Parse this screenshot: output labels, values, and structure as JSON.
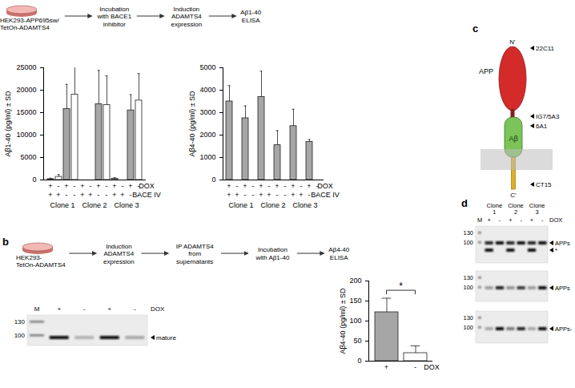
{
  "chart_data": [
    {
      "type": "bar",
      "y_label": "Aβ1-40 (pg/ml) ± SD",
      "categories": [
        null,
        null,
        null,
        null,
        null,
        null,
        null,
        null,
        null,
        null,
        null,
        null
      ],
      "groups": [
        "Clone 1",
        "Clone 2",
        "Clone 3"
      ],
      "rows": [
        {
          "name": "DOX",
          "labels": [
            "+",
            "-",
            "+",
            "-",
            "+",
            "-",
            "+",
            "-",
            "+",
            "-",
            "+",
            "-"
          ]
        },
        {
          "name": "BACE IV",
          "labels": [
            "+",
            "+",
            "-",
            "-",
            "+",
            "+",
            "-",
            "-",
            "+",
            "+",
            "-",
            "-"
          ]
        }
      ],
      "values": [
        200,
        700,
        15800,
        19000,
        0,
        0,
        16900,
        16700,
        300,
        0,
        15500,
        17700
      ],
      "error": [
        200,
        500,
        5500,
        7500,
        0,
        0,
        7500,
        6500,
        200,
        0,
        3500,
        6000
      ],
      "colors": [
        "#a6a6a6",
        "#ffffff",
        "#a6a6a6",
        "#ffffff",
        "#a6a6a6",
        "#ffffff",
        "#a6a6a6",
        "#ffffff",
        "#a6a6a6",
        "#ffffff",
        "#a6a6a6",
        "#ffffff"
      ],
      "ylim": [
        0,
        25000
      ],
      "yticks": [
        0,
        5000,
        10000,
        15000,
        20000,
        25000
      ]
    },
    {
      "type": "bar",
      "y_label": "Aβ4-40 (pg/ml) ± SD",
      "categories": [
        null,
        null,
        null,
        null,
        null,
        null,
        null,
        null,
        null,
        null,
        null,
        null
      ],
      "groups": [
        "Clone 1",
        "Clone 2",
        "Clone 3"
      ],
      "rows": [
        {
          "name": "DOX",
          "labels": [
            "+",
            "-",
            "+",
            "-",
            "+",
            "-",
            "+",
            "-",
            "+",
            "-",
            "+",
            "-"
          ]
        },
        {
          "name": "BACE IV",
          "labels": [
            "+",
            "+",
            "-",
            "-",
            "+",
            "+",
            "-",
            "-",
            "+",
            "+",
            "-",
            "-"
          ]
        }
      ],
      "values": [
        3500,
        0,
        2750,
        0,
        3700,
        0,
        1550,
        0,
        2400,
        0,
        1700,
        0
      ],
      "error": [
        700,
        0,
        550,
        0,
        1150,
        0,
        650,
        0,
        750,
        0,
        100,
        0
      ],
      "colors": [
        "#a6a6a6",
        "#ffffff",
        "#a6a6a6",
        "#ffffff",
        "#a6a6a6",
        "#ffffff",
        "#a6a6a6",
        "#ffffff",
        "#a6a6a6",
        "#ffffff",
        "#a6a6a6",
        "#ffffff"
      ],
      "ylim": [
        0,
        5000
      ],
      "yticks": [
        0,
        1000,
        2000,
        3000,
        4000,
        5000
      ]
    },
    {
      "type": "bar",
      "y_label": "Aβ4-40 (pg/ml) ± SD",
      "categories": [
        "+",
        "-"
      ],
      "x_label": "DOX",
      "values": [
        122,
        20
      ],
      "error": [
        35,
        18
      ],
      "colors": [
        "#a6a6a6",
        "#ffffff"
      ],
      "ylim": [
        0,
        200
      ],
      "yticks": [
        0,
        50,
        100,
        150,
        200
      ],
      "annotations": [
        {
          "text": "*",
          "between": [
            "+",
            "-"
          ]
        }
      ]
    }
  ],
  "panel_labels": [
    "b",
    "c",
    "d"
  ],
  "schemes": [
    {
      "cells": [
        "HEK293-APP695sw/",
        "TetOn-ADAMTS4"
      ],
      "steps": [
        [
          "Incubation",
          "with BACE1",
          "inhibitor"
        ],
        [
          "Induction",
          "ADAMTS4",
          "expression"
        ],
        [
          "Aβ1-40",
          "ELISA"
        ]
      ]
    },
    {
      "cells": [
        "HEK293-",
        "TetOn-ADAMTS4"
      ],
      "steps": [
        [
          "Induction",
          "ADAMTS4",
          "expression"
        ],
        [
          "IP ADAMTS4",
          "from",
          "supernatants"
        ],
        [
          "Incubation",
          "with Aβ1-40"
        ],
        [
          "Aβ4-40",
          "ELISA"
        ]
      ]
    }
  ],
  "blot_b": {
    "lanes": [
      "M",
      "+",
      "-",
      "+",
      "-"
    ],
    "row_label": "DOX",
    "markers": [
      130,
      100
    ],
    "bands": [
      "mature"
    ]
  },
  "app_diagram": {
    "protein": "APP",
    "n_term": "N'",
    "c_term": "C'",
    "region": "Aβ",
    "antibodies": [
      "22C11",
      "IG7/5A3",
      "6A1",
      "CT15"
    ]
  },
  "blot_d": {
    "groups": [
      "Clone 1",
      "Clone 2",
      "Clone 3"
    ],
    "lanes": [
      "M",
      "+",
      "-",
      "+",
      "-",
      "+",
      "-"
    ],
    "row_label": "DOX",
    "strips": [
      {
        "markers": [
          130,
          100
        ],
        "labels": [
          "APPs",
          "*"
        ]
      },
      {
        "markers": [
          130,
          100
        ],
        "labels": [
          "APPs"
        ]
      },
      {
        "markers": [
          130,
          100
        ],
        "labels": [
          "APPs-"
        ]
      }
    ]
  }
}
